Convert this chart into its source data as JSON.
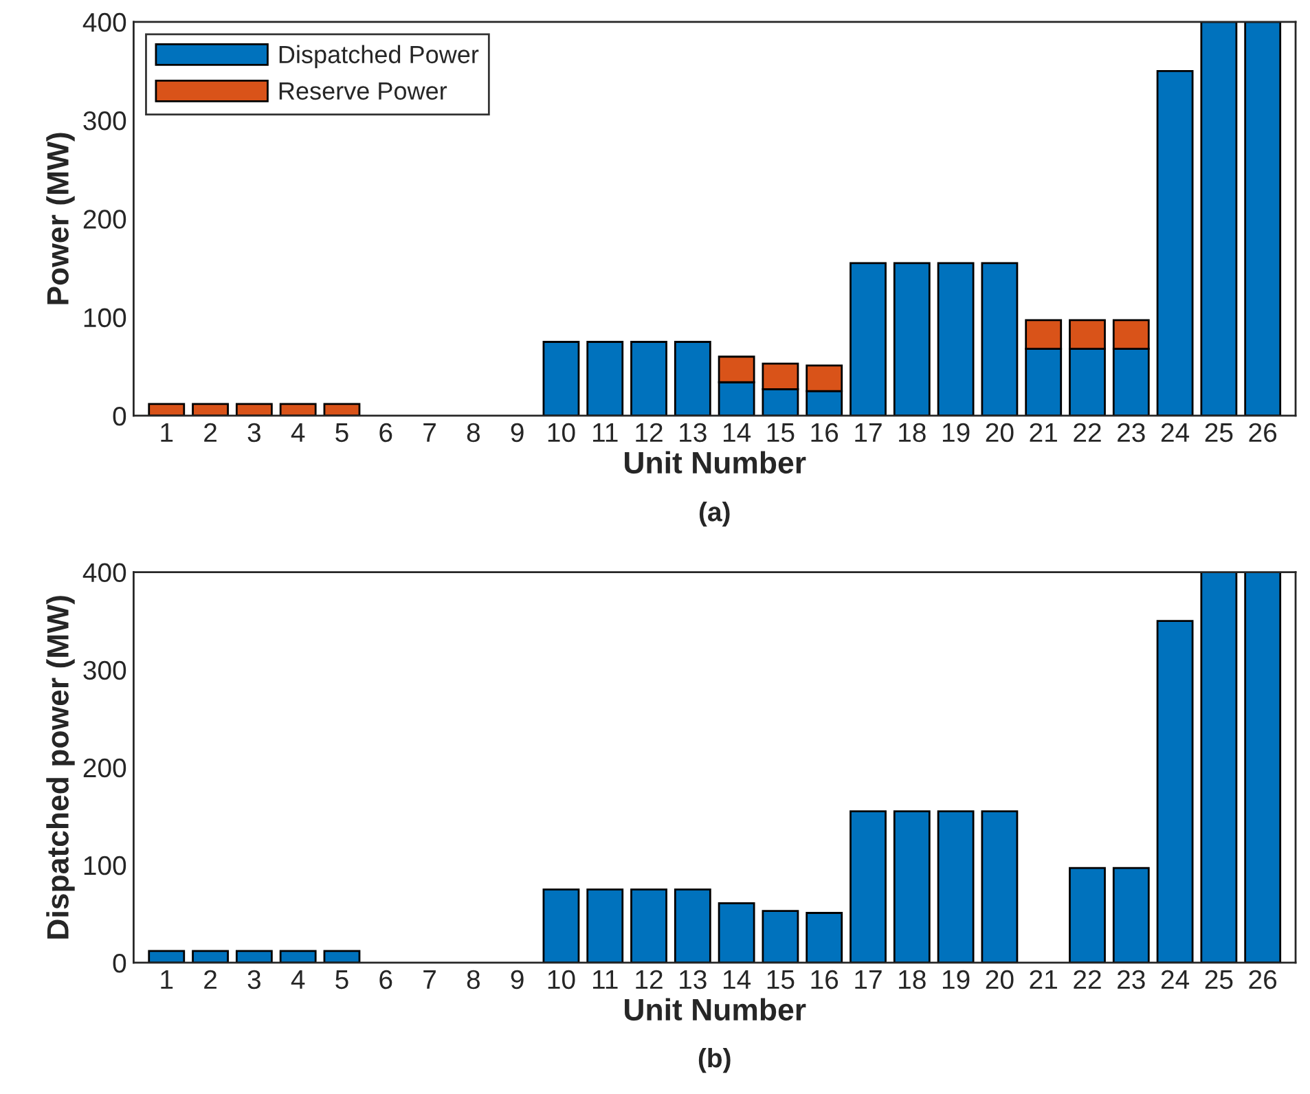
{
  "chart_data": [
    {
      "type": "bar",
      "xlabel": "Unit Number",
      "ylabel": "Power (MW)",
      "annotations": [
        "(a)"
      ],
      "stacked": true,
      "legend": "top left",
      "grid": false,
      "categories": [
        "1",
        "2",
        "3",
        "4",
        "5",
        "6",
        "7",
        "8",
        "9",
        "10",
        "11",
        "12",
        "13",
        "14",
        "15",
        "16",
        "17",
        "18",
        "19",
        "20",
        "21",
        "22",
        "23",
        "24",
        "25",
        "26"
      ],
      "ylim": [
        0,
        400
      ],
      "yticks": [
        0,
        100,
        200,
        300,
        400
      ],
      "series": [
        {
          "name": "Dispatched Power",
          "color": "#0072bd",
          "values": [
            0,
            0,
            0,
            0,
            0,
            0,
            0,
            0,
            0,
            75,
            75,
            75,
            75,
            34,
            27,
            25,
            155,
            155,
            155,
            155,
            68,
            68,
            68,
            350,
            400,
            400
          ]
        },
        {
          "name": "Reserve Power",
          "color": "#d95319",
          "values": [
            12,
            12,
            12,
            12,
            12,
            0,
            0,
            0,
            0,
            0,
            0,
            0,
            0,
            26,
            26,
            26,
            0,
            0,
            0,
            0,
            29,
            29,
            29,
            0,
            0,
            0
          ]
        }
      ]
    },
    {
      "type": "bar",
      "xlabel": "Unit Number",
      "ylabel": "Dispatched power (MW)",
      "annotations": [
        "(b)"
      ],
      "grid": false,
      "categories": [
        "1",
        "2",
        "3",
        "4",
        "5",
        "6",
        "7",
        "8",
        "9",
        "10",
        "11",
        "12",
        "13",
        "14",
        "15",
        "16",
        "17",
        "18",
        "19",
        "20",
        "21",
        "22",
        "23",
        "24",
        "25",
        "26"
      ],
      "ylim": [
        0,
        400
      ],
      "yticks": [
        0,
        100,
        200,
        300,
        400
      ],
      "series": [
        {
          "color": "#0072bd",
          "values": [
            12,
            12,
            12,
            12,
            12,
            0,
            0,
            0,
            0,
            75,
            75,
            75,
            75,
            61,
            53,
            51,
            155,
            155,
            155,
            155,
            0,
            97,
            97,
            350,
            400,
            400
          ]
        }
      ]
    }
  ]
}
